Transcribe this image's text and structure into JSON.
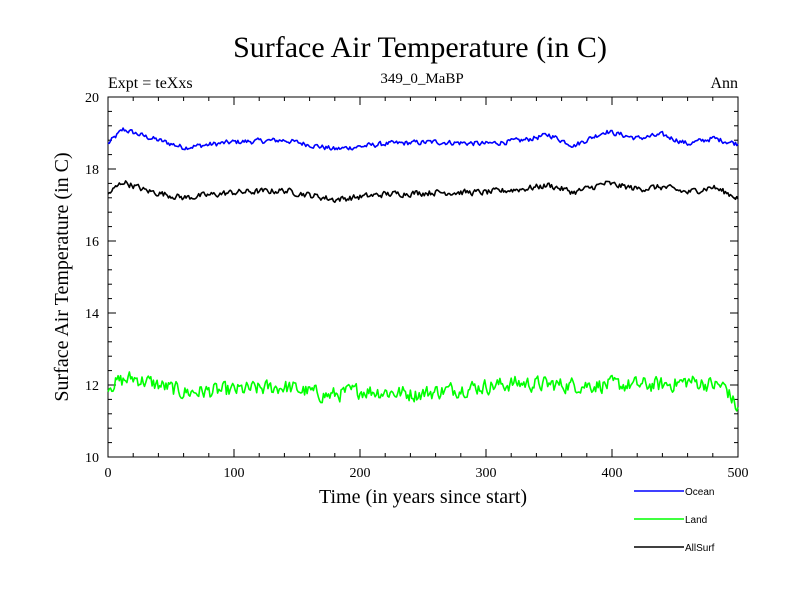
{
  "chart_data": {
    "type": "line",
    "title": "Surface Air Temperature (in C)",
    "subtitle": "349_0_MaBP",
    "left_label": "Expt = teXxs",
    "right_label": "Ann",
    "xlabel": "Time (in years since start)",
    "ylabel": "Surface Air Temperature (in C)",
    "xlim": [
      0,
      500
    ],
    "ylim": [
      10,
      20
    ],
    "xticks": [
      0,
      100,
      200,
      300,
      400,
      500
    ],
    "yticks": [
      10,
      12,
      14,
      16,
      18,
      20
    ],
    "grid": false,
    "legend_position": "bottom-right, below plot",
    "series": [
      {
        "name": "Ocean",
        "color": "#0000ff",
        "mean": 18.8,
        "noise": 0.1,
        "anchors": [
          [
            0,
            18.7
          ],
          [
            12,
            19.1
          ],
          [
            30,
            18.9
          ],
          [
            60,
            18.6
          ],
          [
            100,
            18.75
          ],
          [
            140,
            18.8
          ],
          [
            180,
            18.55
          ],
          [
            220,
            18.7
          ],
          [
            260,
            18.75
          ],
          [
            300,
            18.7
          ],
          [
            330,
            18.8
          ],
          [
            350,
            18.95
          ],
          [
            370,
            18.65
          ],
          [
            395,
            19.05
          ],
          [
            420,
            18.85
          ],
          [
            440,
            18.95
          ],
          [
            460,
            18.7
          ],
          [
            480,
            18.85
          ],
          [
            500,
            18.7
          ]
        ]
      },
      {
        "name": "Land",
        "color": "#00ff00",
        "mean": 11.9,
        "noise": 0.3,
        "anchors": [
          [
            0,
            12.0
          ],
          [
            20,
            12.2
          ],
          [
            60,
            11.8
          ],
          [
            100,
            11.85
          ],
          [
            140,
            11.95
          ],
          [
            175,
            11.7
          ],
          [
            200,
            11.85
          ],
          [
            245,
            11.75
          ],
          [
            280,
            11.9
          ],
          [
            325,
            12.05
          ],
          [
            360,
            12.0
          ],
          [
            395,
            12.0
          ],
          [
            440,
            12.0
          ],
          [
            462,
            12.1
          ],
          [
            490,
            11.95
          ],
          [
            500,
            11.3
          ]
        ]
      },
      {
        "name": "AllSurf",
        "color": "#000000",
        "mean": 17.4,
        "noise": 0.12,
        "anchors": [
          [
            0,
            17.3
          ],
          [
            12,
            17.65
          ],
          [
            30,
            17.4
          ],
          [
            60,
            17.2
          ],
          [
            100,
            17.35
          ],
          [
            140,
            17.4
          ],
          [
            180,
            17.15
          ],
          [
            220,
            17.3
          ],
          [
            260,
            17.35
          ],
          [
            300,
            17.35
          ],
          [
            330,
            17.45
          ],
          [
            350,
            17.55
          ],
          [
            370,
            17.35
          ],
          [
            395,
            17.6
          ],
          [
            420,
            17.45
          ],
          [
            440,
            17.5
          ],
          [
            460,
            17.35
          ],
          [
            480,
            17.5
          ],
          [
            500,
            17.2
          ]
        ]
      }
    ]
  }
}
